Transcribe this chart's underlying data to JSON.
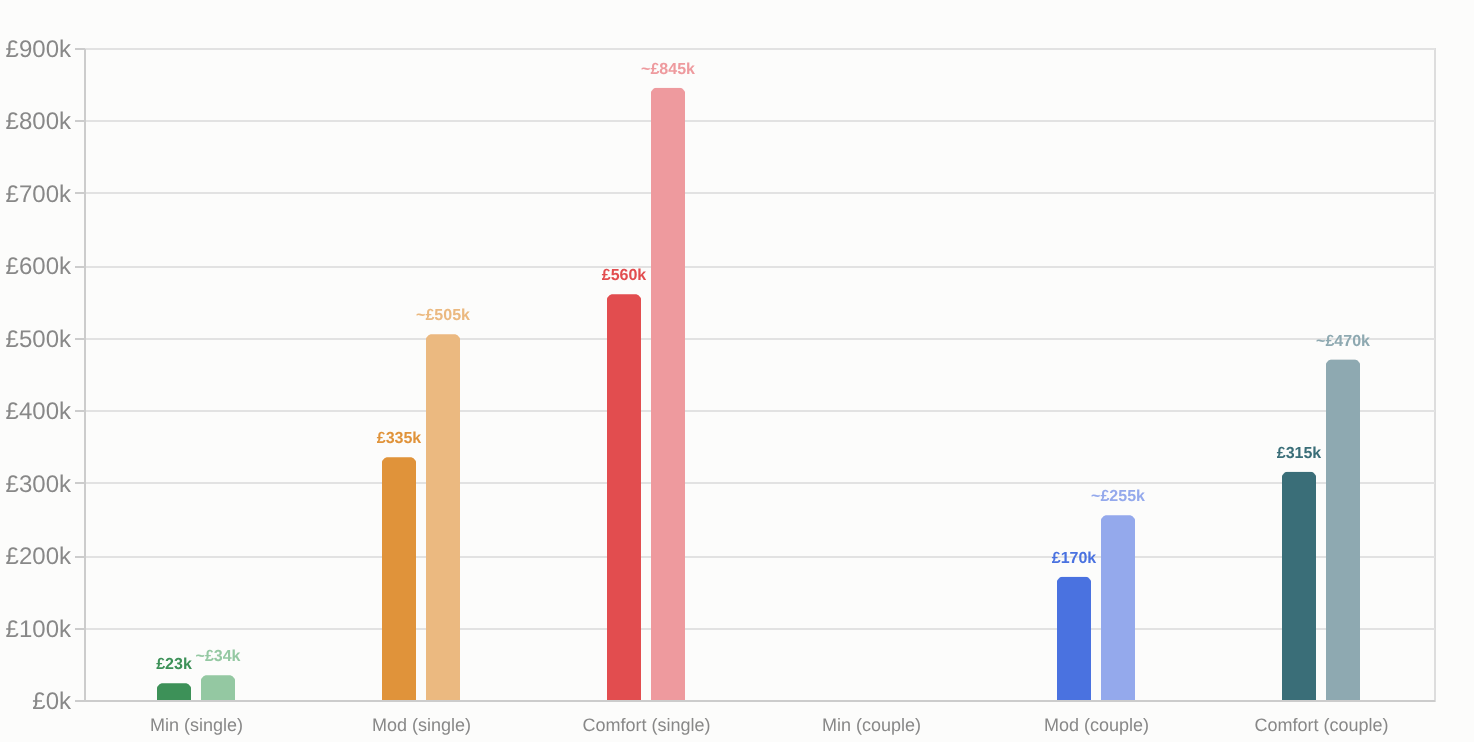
{
  "chart_data": {
    "type": "bar",
    "categories": [
      "Min (single)",
      "Mod (single)",
      "Comfort (single)",
      "Min (couple)",
      "Mod (couple)",
      "Comfort (couple)"
    ],
    "series": [
      {
        "colors": [
          "#3d9158",
          "#e0933a",
          "#e24d4f",
          "#888888",
          "#4a72e0",
          "#3a6e78"
        ],
        "values": [
          23,
          335,
          560,
          null,
          170,
          315
        ],
        "value_labels": [
          "£23k",
          "£335k",
          "£560k",
          null,
          "£170k",
          "£315k"
        ]
      },
      {
        "colors": [
          "#94c8a2",
          "#ebb980",
          "#ee9a9e",
          "#888888",
          "#94a9ec",
          "#8ea9b1"
        ],
        "values": [
          34,
          505,
          845,
          null,
          255,
          470
        ],
        "value_labels": [
          "~£34k",
          "~£505k",
          "~£845k",
          null,
          "~£255k",
          "~£470k"
        ]
      }
    ],
    "ylim": [
      0,
      900
    ],
    "yticks": [
      {
        "value": 0,
        "label": "£0k"
      },
      {
        "value": 100,
        "label": "£100k"
      },
      {
        "value": 200,
        "label": "£200k"
      },
      {
        "value": 300,
        "label": "£300k"
      },
      {
        "value": 400,
        "label": "£400k"
      },
      {
        "value": 500,
        "label": "£500k"
      },
      {
        "value": 600,
        "label": "£600k"
      },
      {
        "value": 700,
        "label": "£700k"
      },
      {
        "value": 800,
        "label": "£800k"
      },
      {
        "value": 900,
        "label": "£900k"
      }
    ],
    "grid": "y"
  }
}
